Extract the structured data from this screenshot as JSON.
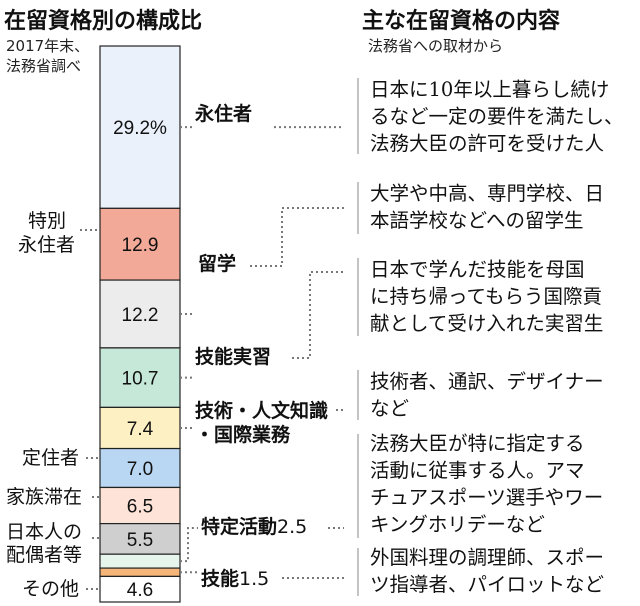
{
  "left_title": "在留資格別の構成比",
  "source_note": "2017年末、法務省調べ",
  "right_title": "主な在留資格の内容",
  "right_subtitle": "法務省への取材から",
  "chart_data": {
    "type": "bar",
    "stacked": true,
    "unit": "%",
    "categories": [
      "永住者",
      "特別永住者",
      "留学",
      "技能実習",
      "技術・人文知識・国際業務",
      "定住者",
      "家族滞在",
      "日本人の配偶者等",
      "特定活動",
      "技能",
      "その他"
    ],
    "series": [
      {
        "values": [
          29.2,
          12.9,
          12.2,
          10.7,
          7.4,
          7.0,
          6.5,
          5.5,
          2.5,
          1.5,
          4.6
        ]
      }
    ],
    "value_labels": [
      "29.2%",
      "12.9",
      "12.2",
      "10.7",
      "7.4",
      "7.0",
      "6.5",
      "5.5",
      "",
      "",
      "4.6"
    ],
    "colors": [
      "#eaf1fb",
      "#f3a998",
      "#ececec",
      "#c6e8d8",
      "#fdf0c2",
      "#b9d7f2",
      "#fde3d8",
      "#cfcfcf",
      "#e6f5ec",
      "#f6b67a",
      "#ffffff"
    ]
  },
  "labels": {
    "eijusha": "永住者",
    "tokubetsu_line1": "特別",
    "tokubetsu_line2": "永住者",
    "ryugaku": "留学",
    "ginou_jisshu": "技能実習",
    "gijutsu_line1": "技術・人文知識",
    "gijutsu_line2": "・国際業務",
    "teijusha": "定住者",
    "kazoku": "家族滞在",
    "haigusha_line1": "日本人の",
    "haigusha_line2": "配偶者等",
    "tokutei_name": "特定活動",
    "tokutei_value": "2.5",
    "ginou_name": "技能",
    "ginou_value": "1.5",
    "sonota": "その他"
  },
  "descriptions": {
    "eijusha": [
      "日本に10年以上暮らし続け",
      "るなど一定の要件を満たし、",
      "法務大臣の許可を受けた人"
    ],
    "ryugaku": [
      "大学や中高、専門学校、日",
      "本語学校などへの留学生"
    ],
    "ginou_jisshu": [
      "日本で学んだ技能を母国",
      "に持ち帰ってもらう国際貢",
      "献として受け入れた実習生"
    ],
    "gijutsu": [
      "技術者、通訳、デザイナー",
      "など"
    ],
    "tokutei": [
      "法務大臣が特に指定する",
      "活動に従事する人。アマ",
      "チュアスポーツ選手やワー",
      "キングホリデーなど"
    ],
    "ginou": [
      "外国料理の調理師、スポー",
      "ツ指導者、パイロットなど"
    ]
  }
}
